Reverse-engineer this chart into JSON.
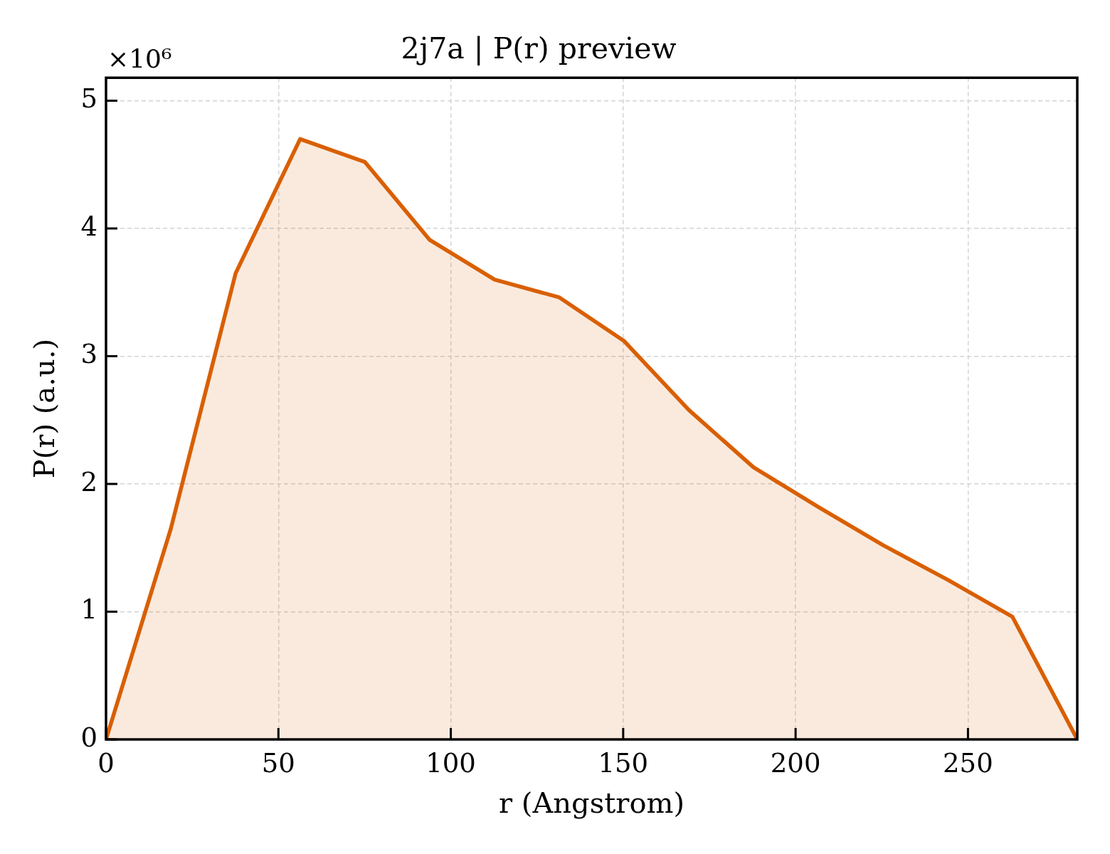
{
  "chart_data": {
    "type": "area",
    "title": "2j7a | P(r) preview",
    "xlabel": "r (Angstrom)",
    "ylabel": "P(r) (a.u.)",
    "annotations": [
      "×10⁶"
    ],
    "x": [
      0,
      18.8,
      37.6,
      56.3,
      75.1,
      93.9,
      112.7,
      131.5,
      150.2,
      169.0,
      187.8,
      206.6,
      225.4,
      244.1,
      262.9,
      281.7
    ],
    "values": [
      0,
      1.65,
      3.65,
      4.7,
      4.52,
      3.91,
      3.6,
      3.46,
      3.12,
      2.58,
      2.13,
      1.82,
      1.52,
      1.25,
      0.96,
      0
    ],
    "color": "#d95f02",
    "xlim": [
      0,
      281.7
    ],
    "xticks": [
      0,
      50,
      100,
      150,
      200,
      250
    ],
    "ylim": [
      0,
      5.18
    ],
    "yticks": [
      0,
      1,
      2,
      3,
      4,
      5
    ],
    "grid": true
  }
}
